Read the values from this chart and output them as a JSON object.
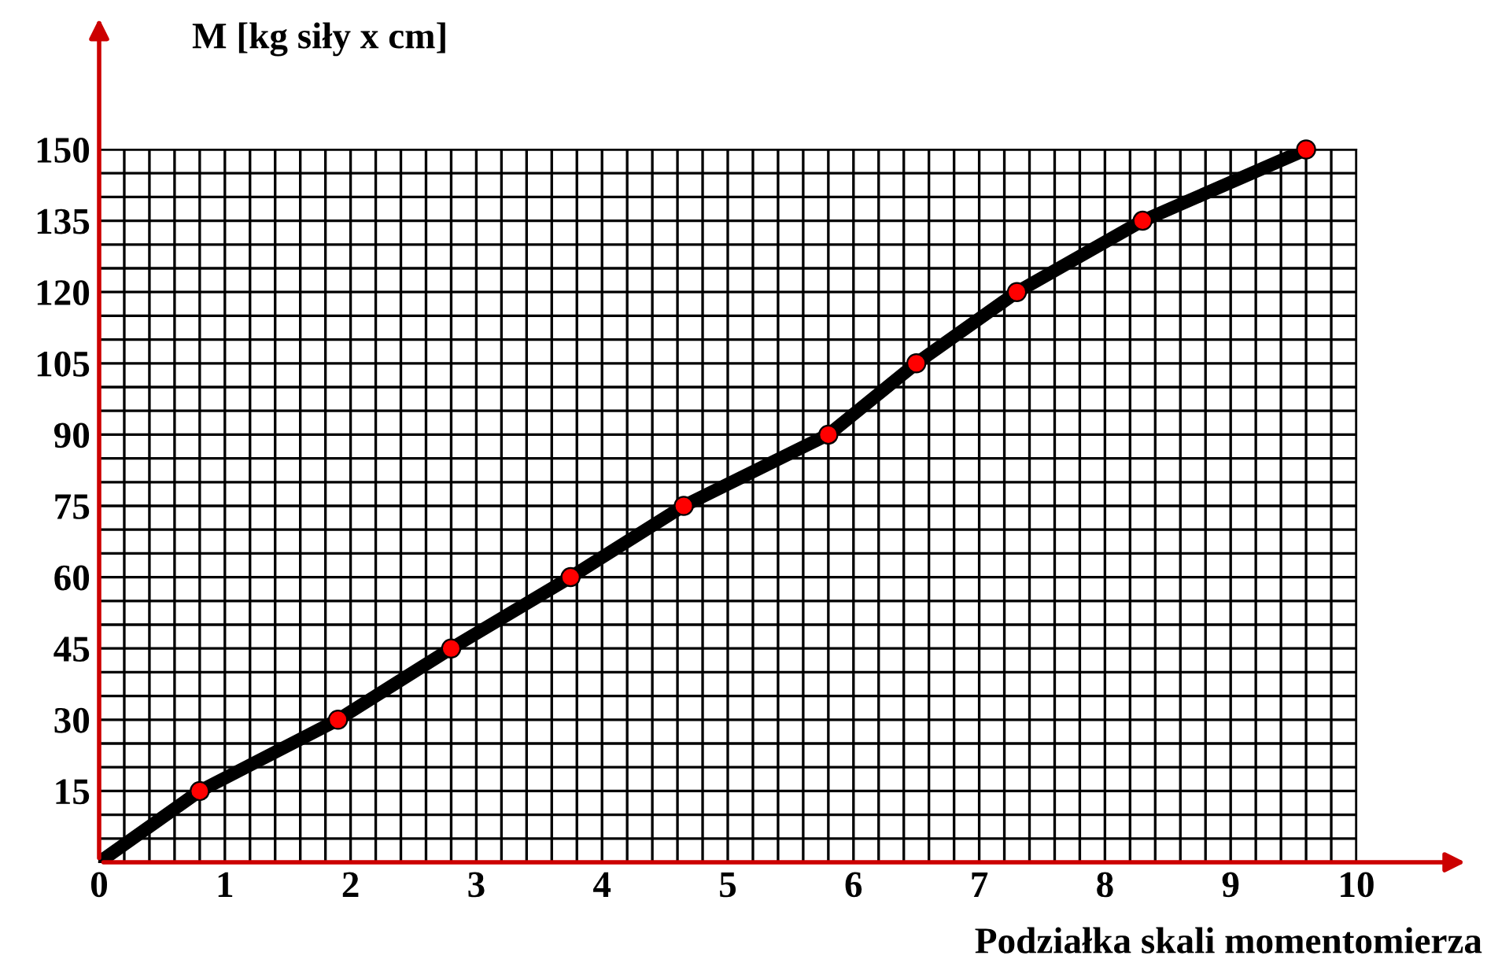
{
  "chart_data": {
    "type": "line",
    "ylabel": "M [kg siły x cm]",
    "xlabel": "Podziałka skali momentomierza",
    "xlim": [
      0,
      10
    ],
    "ylim": [
      0,
      150
    ],
    "xticks": [
      0,
      1,
      2,
      3,
      4,
      5,
      6,
      7,
      8,
      9,
      10
    ],
    "yticks": [
      {
        "value": 0,
        "label": null
      },
      15,
      30,
      45,
      60,
      75,
      90,
      105,
      120,
      135,
      150
    ],
    "grid": true,
    "series": [
      {
        "color": "#000000",
        "x": [
          0,
          0.8,
          1.9,
          2.8,
          3.75,
          4.65,
          5.8,
          6.5,
          7.3,
          8.3,
          9.6
        ],
        "values": [
          0,
          15,
          30,
          45,
          60,
          75,
          90,
          105,
          120,
          135,
          150
        ]
      },
      {
        "type": "scatter",
        "color": "#ff0000",
        "marker": "circle",
        "x": [
          0.8,
          1.9,
          2.8,
          3.75,
          4.65,
          5.8,
          6.5,
          7.3,
          8.3,
          9.6
        ],
        "values": [
          15,
          30,
          45,
          60,
          75,
          90,
          105,
          120,
          135,
          150
        ]
      }
    ]
  }
}
